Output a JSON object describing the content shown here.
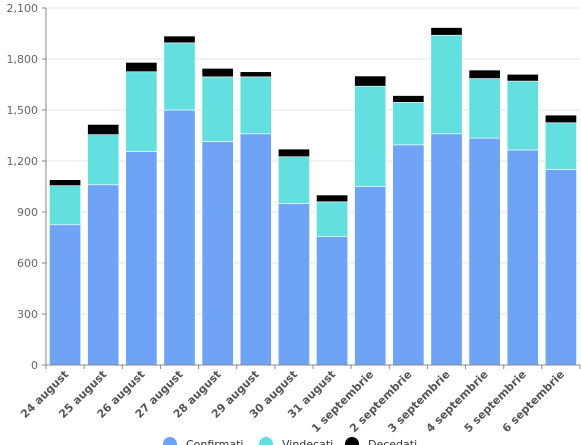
{
  "chart_data": {
    "type": "bar",
    "stacked": true,
    "categories": [
      "24 august",
      "25 august",
      "26 august",
      "27 august",
      "28 august",
      "29 august",
      "30 august",
      "31 august",
      "1 septembrie",
      "2 septembrie",
      "3 septembrie",
      "4 septembrie",
      "5 septembrie",
      "6 septembrie"
    ],
    "series": [
      {
        "name": "Confirmati",
        "color": "#6ea3f5",
        "values": [
          825,
          1060,
          1255,
          1500,
          1315,
          1360,
          950,
          755,
          1050,
          1295,
          1360,
          1335,
          1265,
          1150
        ]
      },
      {
        "name": "Vindecati",
        "color": "#63dfe0",
        "values": [
          230,
          295,
          470,
          395,
          380,
          335,
          275,
          205,
          590,
          250,
          580,
          350,
          405,
          275
        ]
      },
      {
        "name": "Decedati",
        "color": "#000000",
        "values": [
          35,
          60,
          55,
          40,
          50,
          30,
          45,
          40,
          60,
          40,
          45,
          50,
          40,
          45
        ]
      }
    ],
    "yticks": [
      "0",
      "300",
      "600",
      "900",
      "1,200",
      "1,500",
      "1,800",
      "2,100"
    ],
    "ylim": [
      0,
      2100
    ],
    "grid": true,
    "legend": "bottom"
  }
}
